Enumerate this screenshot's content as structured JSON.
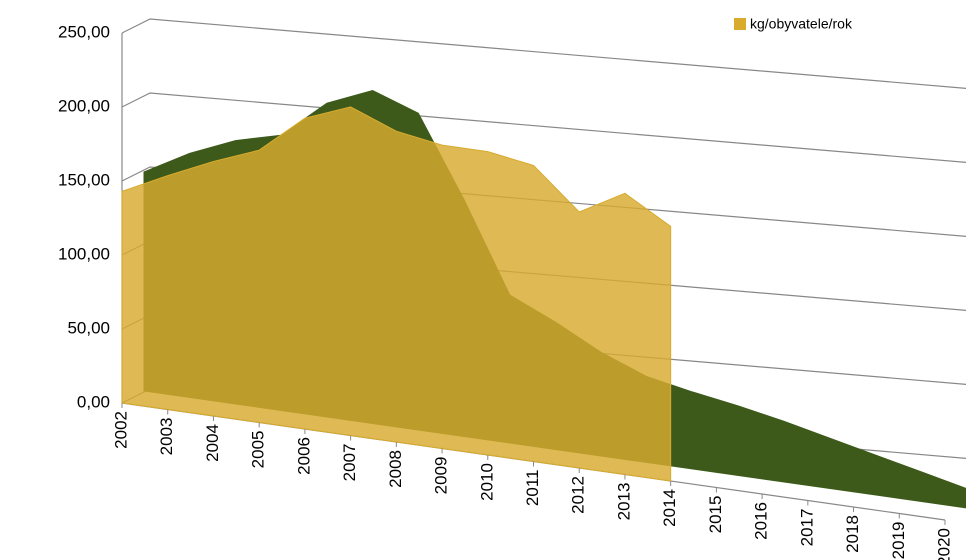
{
  "chart_data": {
    "type": "area3d",
    "categories": [
      "2002",
      "2003",
      "2004",
      "2005",
      "2006",
      "2007",
      "2008",
      "2009",
      "2010",
      "2011",
      "2012",
      "2013",
      "2014",
      "2015",
      "2016",
      "2017",
      "2018",
      "2019",
      "2020"
    ],
    "series": [
      {
        "color": "#3d5a1a",
        "values": [
          148,
          165,
          178,
          186,
          212,
          225,
          214,
          160,
          100,
          86,
          70,
          58,
          52,
          47,
          41,
          34,
          27,
          20,
          13
        ]
      },
      {
        "name": "kg/obyvatele/rok",
        "color": "#d8ab2e",
        "values": [
          143,
          158,
          172,
          184,
          210,
          222,
          210,
          205,
          205,
          200,
          173,
          190,
          172,
          null,
          null,
          null,
          null,
          null,
          null
        ]
      }
    ],
    "ylim": [
      0,
      250
    ],
    "yticks": [
      {
        "value": 0,
        "label": "0,00"
      },
      {
        "value": 50,
        "label": "50,00"
      },
      {
        "value": 100,
        "label": "100,00"
      },
      {
        "value": 150,
        "label": "150,00"
      },
      {
        "value": 200,
        "label": "200,00"
      },
      {
        "value": 250,
        "label": "250,00"
      }
    ],
    "grid": true,
    "legend": "top-right"
  }
}
